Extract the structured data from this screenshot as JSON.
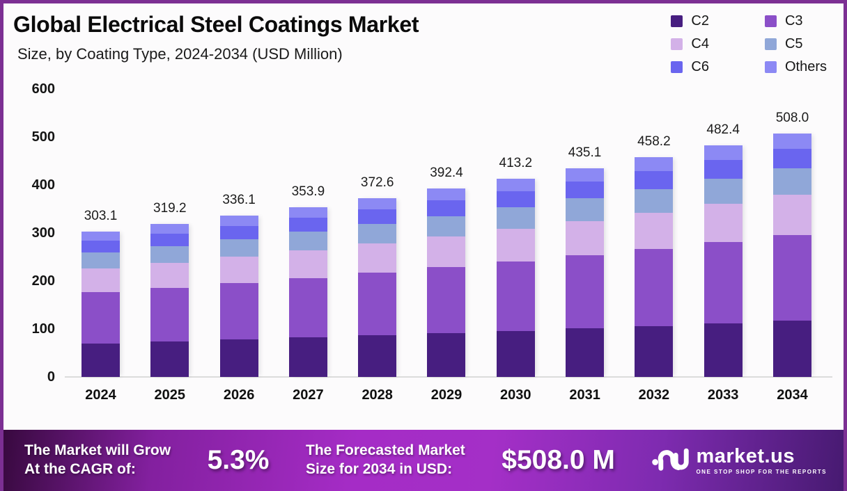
{
  "header": {
    "title": "Global Electrical Steel Coatings Market",
    "subtitle": "Size, by Coating Type, 2024-2034 (USD Million)"
  },
  "chart_data": {
    "type": "bar",
    "stacked": true,
    "title": "Global Electrical Steel Coatings Market",
    "subtitle": "Size, by Coating Type, 2024-2034 (USD Million)",
    "unit": "USD Million",
    "categories": [
      "2024",
      "2025",
      "2026",
      "2027",
      "2028",
      "2029",
      "2030",
      "2031",
      "2032",
      "2033",
      "2034"
    ],
    "totals": [
      303.1,
      319.2,
      336.1,
      353.9,
      372.6,
      392.4,
      413.2,
      435.1,
      458.2,
      482.4,
      508.0
    ],
    "series": [
      {
        "name": "C2",
        "color": "#471E80",
        "values": [
          70.3,
          74.0,
          77.9,
          82.1,
          86.4,
          91.1,
          95.9,
          100.9,
          106.2,
          111.9,
          117.8
        ]
      },
      {
        "name": "C3",
        "color": "#8B4FC8",
        "values": [
          106.1,
          111.7,
          117.6,
          123.9,
          130.4,
          137.3,
          144.6,
          152.3,
          160.4,
          168.8,
          177.8
        ]
      },
      {
        "name": "C4",
        "color": "#D3B1E8",
        "values": [
          50.0,
          52.7,
          55.5,
          58.4,
          61.5,
          64.7,
          68.2,
          71.8,
          75.6,
          79.6,
          83.8
        ]
      },
      {
        "name": "C5",
        "color": "#90A7D8",
        "values": [
          32.7,
          34.5,
          36.3,
          38.2,
          40.2,
          42.4,
          44.6,
          47.0,
          49.5,
          52.1,
          54.9
        ]
      },
      {
        "name": "C6",
        "color": "#6A65EF",
        "values": [
          24.9,
          26.2,
          27.6,
          29.0,
          30.6,
          32.2,
          33.9,
          35.7,
          37.6,
          39.6,
          41.7
        ]
      },
      {
        "name": "Others",
        "color": "#8C89F4",
        "values": [
          19.1,
          20.1,
          21.2,
          22.3,
          23.5,
          24.7,
          26.0,
          27.4,
          28.9,
          30.4,
          32.0
        ]
      }
    ],
    "ylim": [
      0,
      600
    ],
    "yticks": [
      0,
      100,
      200,
      300,
      400,
      500,
      600
    ],
    "grid": false,
    "legend_position": "top-right"
  },
  "footer": {
    "cagr_label_line1": "The Market will Grow",
    "cagr_label_line2": "At the CAGR of:",
    "cagr_value": "5.3%",
    "forecast_label_line1": "The Forecasted Market",
    "forecast_label_line2": "Size for 2034 in USD:",
    "forecast_value": "$508.0 M",
    "brand_name": "market.us",
    "brand_tagline": "ONE STOP SHOP FOR THE REPORTS"
  },
  "colors": {
    "frame_border": "#7C2F93",
    "axis_line": "#DCDCDC",
    "footer_gradient": [
      "#38093F",
      "#A52CC6",
      "#471A71"
    ]
  }
}
